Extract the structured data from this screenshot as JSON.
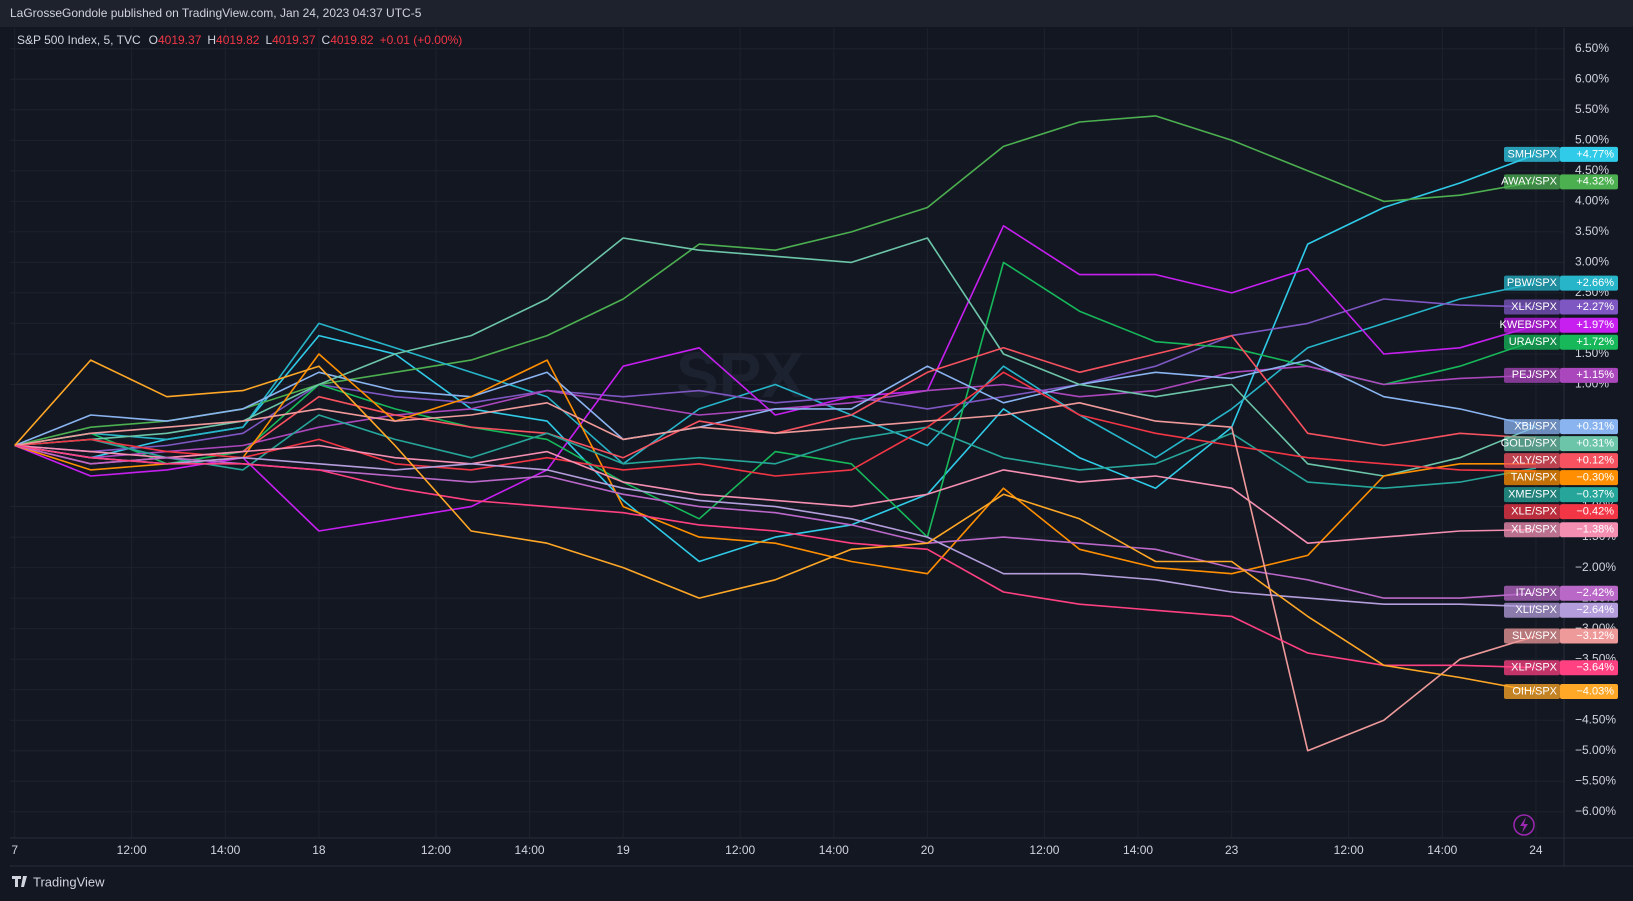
{
  "publisher": "LaGrosseGondole published on TradingView.com, Jan 24, 2023 04:37 UTC-5",
  "brand": "TradingView",
  "legend_line": {
    "symbol": "S&P 500 Index, 5, TVC",
    "ohlc": [
      {
        "key": "O",
        "value": "4019.37"
      },
      {
        "key": "H",
        "value": "4019.82"
      },
      {
        "key": "L",
        "value": "4019.37"
      },
      {
        "key": "C",
        "value": "4019.82"
      }
    ],
    "change": "+0.01 (+0.00%)"
  },
  "watermark": "SPX",
  "chart_data": {
    "type": "line",
    "x": [
      0,
      1.625,
      3.25,
      4.875,
      6.5,
      8.125,
      9.75,
      11.375,
      13,
      14.625,
      16.25,
      17.875,
      19.5,
      21.125,
      22.75,
      24.375,
      26,
      27.625,
      29.25,
      30.875,
      32.5
    ],
    "xlim": [
      -0.1,
      33.1
    ],
    "xticks": [
      {
        "value": 0,
        "label": "7"
      },
      {
        "value": 2.5,
        "label": "12:00"
      },
      {
        "value": 4.5,
        "label": "14:00"
      },
      {
        "value": 6.5,
        "label": "18"
      },
      {
        "value": 9,
        "label": "12:00"
      },
      {
        "value": 11,
        "label": "14:00"
      },
      {
        "value": 13,
        "label": "19"
      },
      {
        "value": 15.5,
        "label": "12:00"
      },
      {
        "value": 17.5,
        "label": "14:00"
      },
      {
        "value": 19.5,
        "label": "20"
      },
      {
        "value": 22,
        "label": "12:00"
      },
      {
        "value": 24,
        "label": "14:00"
      },
      {
        "value": 26,
        "label": "23"
      },
      {
        "value": 28.5,
        "label": "12:00"
      },
      {
        "value": 30.5,
        "label": "14:00"
      },
      {
        "value": 32.5,
        "label": "24"
      }
    ],
    "ylim": [
      -6.43,
      6.84
    ],
    "yticks": [
      {
        "value": 6.5,
        "label": "6.50%"
      },
      {
        "value": 6,
        "label": "6.00%"
      },
      {
        "value": 5.5,
        "label": "5.50%"
      },
      {
        "value": 5,
        "label": "5.00%"
      },
      {
        "value": 4.5,
        "label": "4.50%"
      },
      {
        "value": 4,
        "label": "4.00%"
      },
      {
        "value": 3.5,
        "label": "3.50%"
      },
      {
        "value": 3,
        "label": "3.00%"
      },
      {
        "value": 2.5,
        "label": "2.50%"
      },
      {
        "value": 2,
        "label": "2.00%"
      },
      {
        "value": 1.5,
        "label": "1.50%"
      },
      {
        "value": 1,
        "label": "1.00%"
      },
      {
        "value": -1,
        "label": "−1.00%"
      },
      {
        "value": -1.5,
        "label": "−1.50%"
      },
      {
        "value": -2,
        "label": "−2.00%"
      },
      {
        "value": -2.5,
        "label": "−2.50%"
      },
      {
        "value": -3,
        "label": "−3.00%"
      },
      {
        "value": -3.5,
        "label": "−3.50%"
      },
      {
        "value": -4,
        "label": "−4.00%"
      },
      {
        "value": -4.5,
        "label": "−4.50%"
      },
      {
        "value": -5,
        "label": "−5.00%"
      },
      {
        "value": -5.5,
        "label": "−5.50%"
      },
      {
        "value": -6,
        "label": "−6.00%"
      }
    ],
    "grid": true,
    "series": [
      {
        "name": "SMH/SPX",
        "color": "#2fcbe8",
        "last_label": "+4.77%",
        "values": [
          0,
          -0.2,
          0.1,
          0.3,
          1.8,
          1.5,
          0.6,
          0.4,
          -0.9,
          -1.9,
          -1.5,
          -1.3,
          -0.8,
          0.6,
          -0.2,
          -0.7,
          0.3,
          3.3,
          3.9,
          4.3,
          4.77
        ]
      },
      {
        "name": "AWAY/SPX",
        "color": "#4caf50",
        "last_label": "+4.32%",
        "values": [
          0,
          0.3,
          0.4,
          0.6,
          1.0,
          1.2,
          1.4,
          1.8,
          2.4,
          3.3,
          3.2,
          3.5,
          3.9,
          4.9,
          5.3,
          5.4,
          5.0,
          4.5,
          4.0,
          4.1,
          4.32
        ]
      },
      {
        "name": "PBW/SPX",
        "color": "#26b5c9",
        "last_label": "+2.66%",
        "values": [
          0,
          0.2,
          0.1,
          0.3,
          2.0,
          1.6,
          1.2,
          0.8,
          -0.3,
          0.6,
          1.0,
          0.5,
          0.0,
          1.3,
          0.5,
          -0.2,
          0.6,
          1.6,
          2.0,
          2.4,
          2.66
        ]
      },
      {
        "name": "XLK/SPX",
        "color": "#7e57c2",
        "last_label": "+2.27%",
        "values": [
          0,
          -0.1,
          0,
          0.2,
          1.0,
          0.8,
          0.7,
          0.9,
          0.8,
          0.9,
          0.7,
          0.8,
          0.6,
          0.8,
          1.0,
          1.3,
          1.8,
          2.0,
          2.4,
          2.3,
          2.27
        ]
      },
      {
        "name": "KWEB/SPX",
        "color": "#c61ff0",
        "last_label": "+1.97%",
        "values": [
          0,
          -0.5,
          -0.4,
          -0.2,
          -1.4,
          -1.2,
          -1.0,
          -0.4,
          1.3,
          1.6,
          0.5,
          0.8,
          0.9,
          3.6,
          2.8,
          2.8,
          2.5,
          2.9,
          1.5,
          1.6,
          1.97
        ]
      },
      {
        "name": "URA/SPX",
        "color": "#16b85a",
        "last_label": "+1.72%",
        "values": [
          0,
          0.2,
          -0.3,
          -0.1,
          1.0,
          0.6,
          0.3,
          0.1,
          -0.6,
          -1.2,
          -0.1,
          -0.3,
          -1.5,
          3.0,
          2.2,
          1.7,
          1.6,
          1.3,
          1.0,
          1.3,
          1.72
        ]
      },
      {
        "name": "PEJ/SPX",
        "color": "#ab47bc",
        "last_label": "+1.15%",
        "values": [
          0,
          -0.2,
          -0.1,
          0,
          0.3,
          0.5,
          0.6,
          0.9,
          0.7,
          0.5,
          0.6,
          0.7,
          0.9,
          1.0,
          0.8,
          0.9,
          1.2,
          1.3,
          1.0,
          1.1,
          1.15
        ]
      },
      {
        "name": "XBI/SPX",
        "color": "#8ab4f0",
        "last_label": "+0.31%",
        "values": [
          0,
          0.5,
          0.4,
          0.6,
          1.2,
          0.9,
          0.8,
          1.2,
          0.1,
          0.3,
          0.6,
          0.6,
          1.3,
          0.7,
          1.0,
          1.2,
          1.1,
          1.4,
          0.8,
          0.6,
          0.31
        ]
      },
      {
        "name": "GOLD/SPX",
        "color": "#6cc5a8",
        "last_label": "+0.31%",
        "values": [
          0,
          0.1,
          0.2,
          0.4,
          1.0,
          1.5,
          1.8,
          2.4,
          3.4,
          3.2,
          3.1,
          3.0,
          3.4,
          1.5,
          1.0,
          0.8,
          1.0,
          -0.3,
          -0.5,
          -0.2,
          0.31
        ]
      },
      {
        "name": "XLY/SPX",
        "color": "#f7525f",
        "last_label": "+0.12%",
        "values": [
          0,
          -0.3,
          -0.2,
          -0.1,
          0.8,
          0.5,
          0.3,
          0.2,
          -0.2,
          0.4,
          0.2,
          0.5,
          1.2,
          1.6,
          1.2,
          1.5,
          1.8,
          0.2,
          0.0,
          0.2,
          0.12
        ]
      },
      {
        "name": "TAN/SPX",
        "color": "#ff8f00",
        "last_label": "−0.30%",
        "values": [
          0,
          -0.4,
          -0.3,
          -0.2,
          1.5,
          0.4,
          0.8,
          1.4,
          -1.0,
          -1.5,
          -1.6,
          -1.9,
          -2.1,
          -0.7,
          -1.7,
          -2.0,
          -2.1,
          -1.8,
          -0.5,
          -0.3,
          -0.3
        ]
      },
      {
        "name": "XME/SPX",
        "color": "#26a69a",
        "last_label": "−0.37%",
        "values": [
          0,
          0.1,
          -0.2,
          -0.4,
          0.5,
          0.1,
          -0.2,
          0.2,
          -0.3,
          -0.2,
          -0.3,
          0.1,
          0.3,
          -0.2,
          -0.4,
          -0.3,
          0.2,
          -0.6,
          -0.7,
          -0.6,
          -0.37
        ]
      },
      {
        "name": "XLE/SPX",
        "color": "#f23645",
        "last_label": "−0.42%",
        "values": [
          0,
          0.1,
          -0.1,
          -0.2,
          0.1,
          -0.3,
          -0.4,
          -0.2,
          -0.4,
          -0.3,
          -0.5,
          -0.4,
          0.3,
          1.2,
          0.5,
          0.2,
          0.0,
          -0.2,
          -0.3,
          -0.4,
          -0.42
        ]
      },
      {
        "name": "XLB/SPX",
        "color": "#f48fb1",
        "last_label": "−1.38%",
        "values": [
          0,
          -0.1,
          -0.2,
          -0.1,
          0.0,
          -0.2,
          -0.3,
          -0.1,
          -0.6,
          -0.8,
          -0.9,
          -1.0,
          -0.8,
          -0.4,
          -0.6,
          -0.5,
          -0.7,
          -1.6,
          -1.5,
          -1.4,
          -1.38
        ]
      },
      {
        "name": "ITA/SPX",
        "color": "#ba68c8",
        "last_label": "−2.42%",
        "values": [
          0,
          -0.3,
          -0.2,
          -0.3,
          -0.4,
          -0.5,
          -0.6,
          -0.5,
          -0.8,
          -1.0,
          -1.1,
          -1.3,
          -1.6,
          -1.5,
          -1.6,
          -1.7,
          -2.0,
          -2.2,
          -2.5,
          -2.5,
          -2.42
        ]
      },
      {
        "name": "XLI/SPX",
        "color": "#b39ddb",
        "last_label": "−2.64%",
        "values": [
          0,
          -0.2,
          -0.3,
          -0.2,
          -0.3,
          -0.4,
          -0.3,
          -0.4,
          -0.7,
          -0.9,
          -1.0,
          -1.2,
          -1.5,
          -2.1,
          -2.1,
          -2.2,
          -2.4,
          -2.5,
          -2.6,
          -2.6,
          -2.64
        ]
      },
      {
        "name": "SLV/SPX",
        "color": "#ef9a9a",
        "last_label": "−3.12%",
        "values": [
          0,
          0.2,
          0.3,
          0.4,
          0.6,
          0.4,
          0.5,
          0.7,
          0.1,
          0.3,
          0.2,
          0.3,
          0.4,
          0.5,
          0.7,
          0.4,
          0.3,
          -5.0,
          -4.5,
          -3.5,
          -3.12
        ]
      },
      {
        "name": "XLP/SPX",
        "color": "#ff4081",
        "last_label": "−3.64%",
        "values": [
          0,
          -0.2,
          -0.3,
          -0.3,
          -0.4,
          -0.7,
          -0.9,
          -1.0,
          -1.1,
          -1.3,
          -1.4,
          -1.6,
          -1.7,
          -2.4,
          -2.6,
          -2.7,
          -2.8,
          -3.4,
          -3.6,
          -3.6,
          -3.64
        ]
      },
      {
        "name": "OIH/SPX",
        "color": "#ffa726",
        "last_label": "−4.03%",
        "values": [
          0,
          1.4,
          0.8,
          0.9,
          1.3,
          0.0,
          -1.4,
          -1.6,
          -2.0,
          -2.5,
          -2.2,
          -1.7,
          -1.6,
          -0.8,
          -1.2,
          -1.9,
          -1.9,
          -2.8,
          -3.6,
          -3.8,
          -4.03
        ]
      }
    ]
  }
}
